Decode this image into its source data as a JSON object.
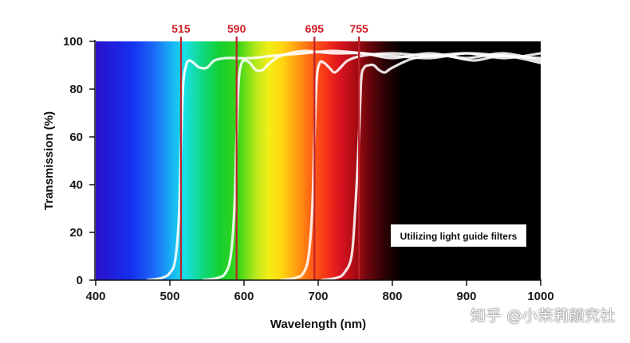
{
  "chart_data": {
    "type": "line",
    "xlabel": "Wavelength (nm)",
    "ylabel": "Transmission (%)",
    "xlim": [
      400,
      1000
    ],
    "ylim": [
      0,
      100
    ],
    "x_ticks": [
      400,
      500,
      600,
      700,
      800,
      900,
      1000
    ],
    "y_ticks": [
      0,
      20,
      40,
      60,
      80,
      100
    ],
    "grid": false,
    "background": "visible spectrum gradient (violet to red), black beyond ~760 nm",
    "cutoff_lines": [
      {
        "label": "515",
        "x": 515
      },
      {
        "label": "590",
        "x": 590
      },
      {
        "label": "695",
        "x": 695
      },
      {
        "label": "755",
        "x": 755
      }
    ],
    "series": [
      {
        "x": [
          470,
          490,
          500,
          507,
          512,
          515,
          518,
          522,
          526,
          532,
          540,
          550,
          560,
          575,
          590,
          610,
          640,
          680,
          720,
          760,
          800,
          850,
          900,
          950,
          1000
        ],
        "y": [
          0,
          1,
          3,
          8,
          25,
          55,
          82,
          90,
          92,
          91,
          89,
          89,
          92,
          93,
          93,
          93,
          94,
          95,
          96,
          95,
          94,
          93,
          95,
          94,
          93
        ]
      },
      {
        "x": [
          545,
          565,
          575,
          582,
          587,
          590,
          593,
          597,
          602,
          608,
          616,
          625,
          635,
          650,
          680,
          720,
          760,
          800,
          850,
          900,
          950,
          1000
        ],
        "y": [
          0,
          1,
          3,
          10,
          30,
          60,
          84,
          91,
          92,
          91,
          88,
          88,
          91,
          94,
          96,
          95,
          95,
          93,
          95,
          93,
          95,
          92
        ]
      },
      {
        "x": [
          650,
          670,
          680,
          687,
          692,
          695,
          698,
          702,
          708,
          715,
          722,
          730,
          740,
          760,
          800,
          850,
          900,
          950,
          1000
        ],
        "y": [
          0,
          1,
          3,
          10,
          30,
          60,
          84,
          91,
          91,
          89,
          87,
          89,
          92,
          94,
          95,
          94,
          95,
          93,
          95
        ]
      },
      {
        "x": [
          705,
          725,
          735,
          745,
          750,
          755,
          758,
          762,
          768,
          775,
          782,
          790,
          800,
          830,
          870,
          910,
          950,
          1000
        ],
        "y": [
          0,
          1,
          3,
          10,
          30,
          60,
          84,
          89,
          90,
          90,
          88,
          87,
          89,
          93,
          94,
          92,
          94,
          91
        ]
      }
    ],
    "annotation": "Utilizing light guide filters"
  },
  "colors": {
    "cutoff_line": "#c0202a",
    "cutoff_label": "#d01c24",
    "curve": "#ffffff",
    "axis": "#111111"
  },
  "watermark": "知乎 @小茉莉颜究社"
}
